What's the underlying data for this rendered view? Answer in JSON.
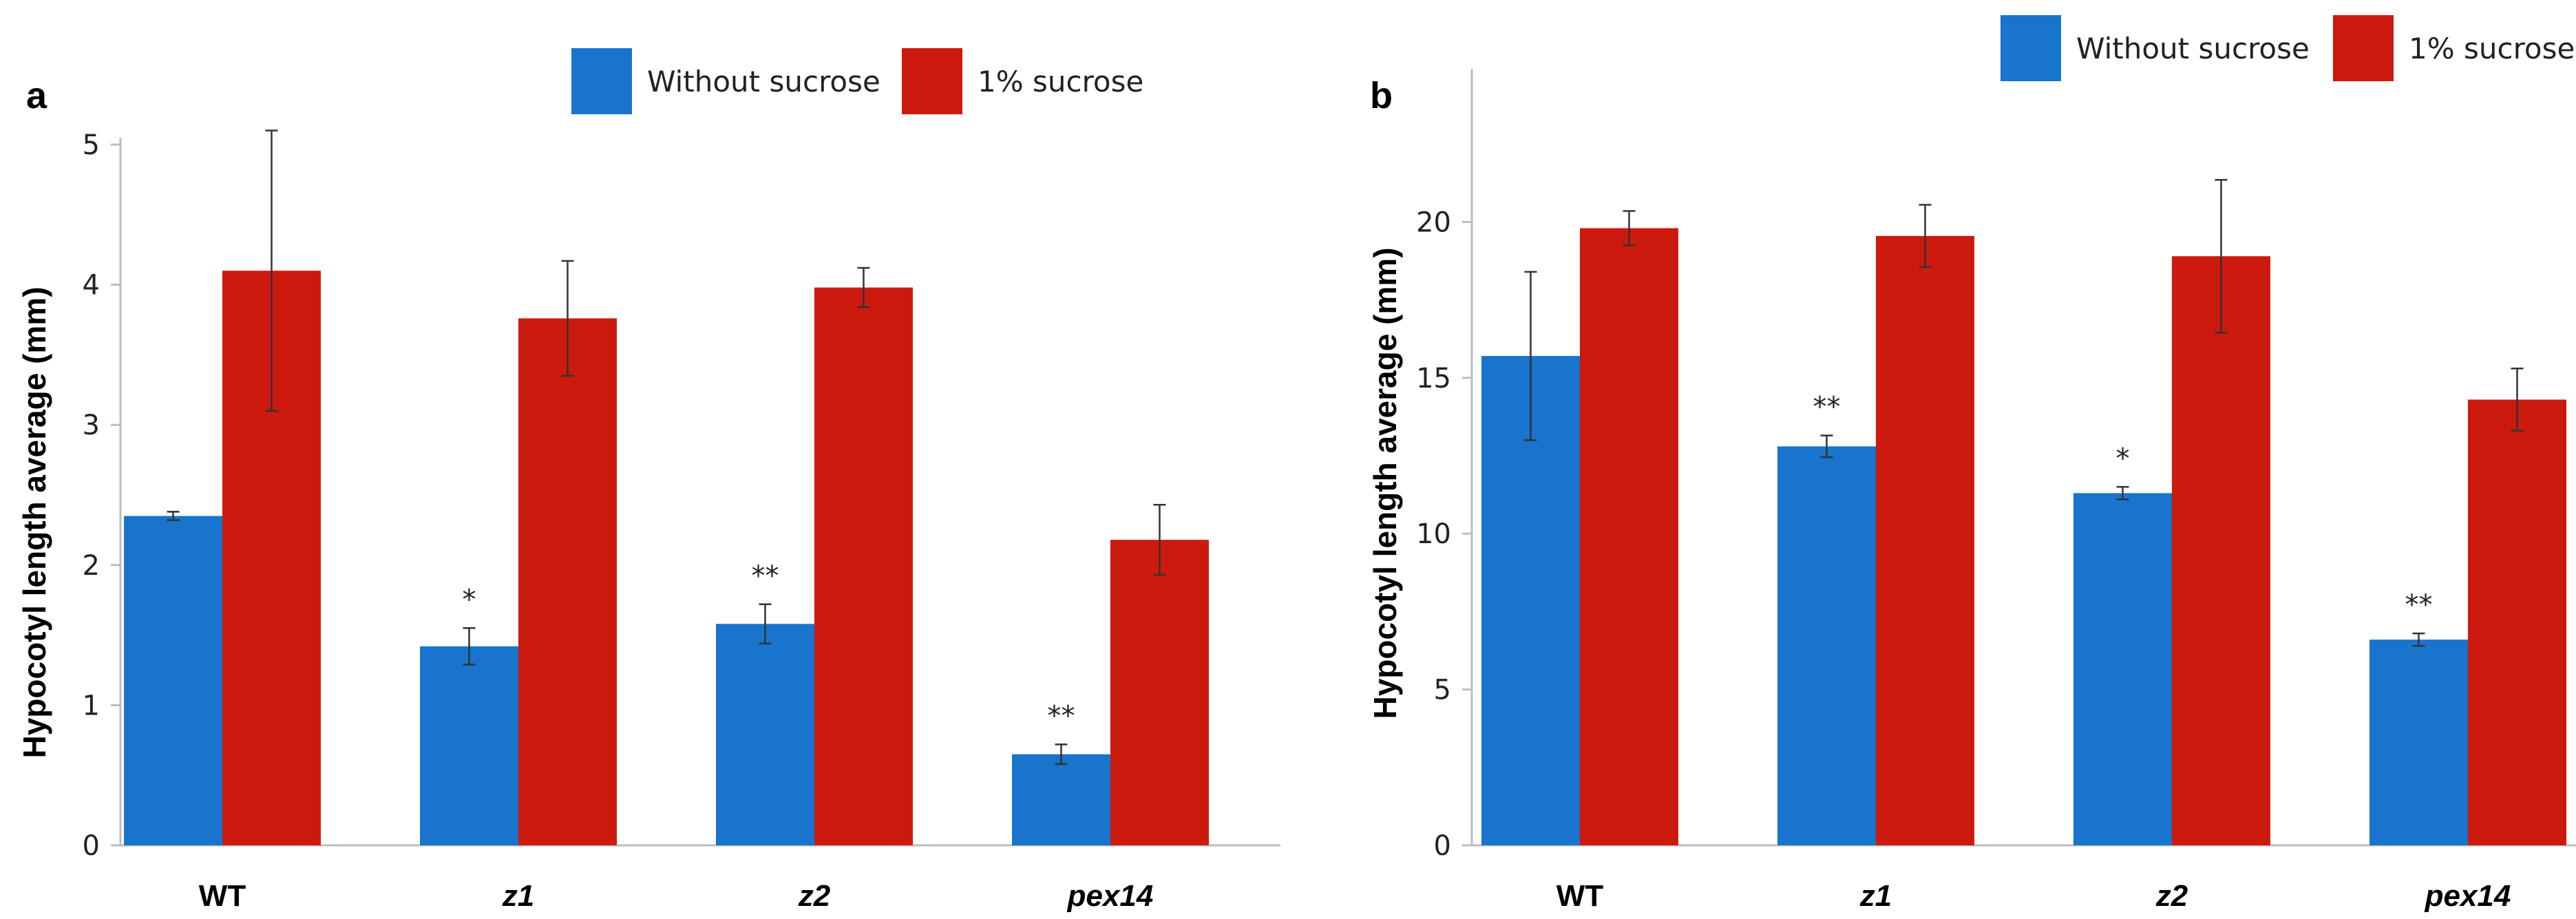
{
  "chart_data": [
    {
      "panel": "a",
      "type": "bar",
      "title": "",
      "xlabel": "",
      "ylabel": "Hypocotyl length average (mm)",
      "ylim": [
        0,
        5
      ],
      "yticks": [
        0,
        1,
        2,
        3,
        4,
        5
      ],
      "categories": [
        "WT",
        "z1",
        "z2",
        "pex14"
      ],
      "italic_categories": [
        false,
        true,
        true,
        true
      ],
      "legend": [
        "Without sucrose",
        "1% sucrose"
      ],
      "series": [
        {
          "name": "Without sucrose",
          "color": "#1874cd",
          "values": [
            2.35,
            1.42,
            1.58,
            0.65
          ],
          "errors": [
            0.03,
            0.13,
            0.14,
            0.07
          ],
          "significance": [
            "",
            "*",
            "**",
            "**"
          ]
        },
        {
          "name": "1% sucrose",
          "color": "#cc1a0e",
          "values": [
            4.1,
            3.76,
            3.98,
            2.18
          ],
          "errors": [
            1.0,
            0.41,
            0.14,
            0.25
          ],
          "significance": [
            "",
            "",
            "",
            ""
          ]
        }
      ]
    },
    {
      "panel": "b",
      "type": "bar",
      "title": "",
      "xlabel": "",
      "ylabel": "Hypocotyl length average (mm)",
      "ylim": [
        0,
        25
      ],
      "yticks": [
        0,
        5,
        10,
        15,
        20
      ],
      "categories": [
        "WT",
        "z1",
        "z2",
        "pex14"
      ],
      "italic_categories": [
        false,
        true,
        true,
        true
      ],
      "legend": [
        "Without sucrose",
        "1% sucrose"
      ],
      "series": [
        {
          "name": "Without sucrose",
          "color": "#1874cd",
          "values": [
            15.7,
            12.8,
            11.3,
            6.6
          ],
          "errors": [
            2.7,
            0.35,
            0.2,
            0.2
          ],
          "significance": [
            "",
            "**",
            "*",
            "**"
          ]
        },
        {
          "name": "1% sucrose",
          "color": "#cc1a0e",
          "values": [
            19.8,
            19.55,
            18.9,
            14.3
          ],
          "errors": [
            0.55,
            1.0,
            2.45,
            1.0
          ],
          "significance": [
            "",
            "",
            "",
            ""
          ]
        }
      ]
    }
  ]
}
